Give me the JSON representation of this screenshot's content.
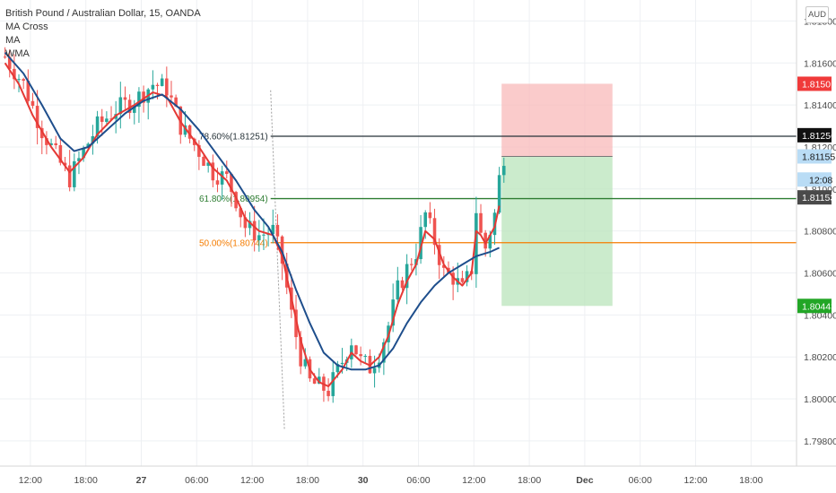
{
  "legend": {
    "title": "British Pound / Australian Dollar, 15, OANDA",
    "indicators": [
      "MA Cross",
      "MA",
      "WMA"
    ]
  },
  "currency_button": "AUD",
  "colors": {
    "grid": "#eef0f3",
    "up": "#26a69a",
    "down": "#ef5350",
    "fast_ma": "#e53935",
    "slow_ma": "#1e4e8c",
    "fib_top": "#263238",
    "fib_618": "#2e7d32",
    "fib_50": "#f57c00",
    "stop_zone": "#f8b9b9",
    "target_zone": "#b9e4bb"
  },
  "chart_data": {
    "type": "candlestick",
    "symbol": "British Pound / Australian Dollar",
    "interval": "15",
    "source": "OANDA",
    "ylim": [
      1.7968,
      1.819
    ],
    "y_ticks": [
      1.798,
      1.8,
      1.802,
      1.804,
      1.806,
      1.808,
      1.81,
      1.812,
      1.814,
      1.816,
      1.818
    ],
    "y_tick_labels": [
      "1.79800",
      "1.80000",
      "1.80200",
      "1.80400",
      "1.80600",
      "1.80800",
      "1.81000",
      "1.81200",
      "1.81400",
      "1.81600",
      "1.81800"
    ],
    "x_ticks": [
      "12:00",
      "18:00",
      "27",
      "06:00",
      "12:00",
      "18:00",
      "30",
      "06:00",
      "12:00",
      "18:00",
      "Dec",
      "06:00",
      "12:00",
      "18:00"
    ],
    "x_tick_bar_index": [
      6,
      18,
      30,
      42,
      54,
      66,
      78,
      90,
      102,
      114,
      126,
      138,
      150,
      162
    ],
    "price_path": [
      [
        0,
        1.8163
      ],
      [
        4,
        1.815
      ],
      [
        8,
        1.8128
      ],
      [
        12,
        1.8112
      ],
      [
        14,
        1.8105
      ],
      [
        17,
        1.8118
      ],
      [
        20,
        1.813
      ],
      [
        24,
        1.8138
      ],
      [
        28,
        1.8142
      ],
      [
        32,
        1.815
      ],
      [
        35,
        1.8148
      ],
      [
        38,
        1.813
      ],
      [
        42,
        1.8118
      ],
      [
        45,
        1.8108
      ],
      [
        48,
        1.8105
      ],
      [
        50,
        1.8095
      ],
      [
        52,
        1.8082
      ],
      [
        55,
        1.8078
      ],
      [
        58,
        1.808
      ],
      [
        60,
        1.8065
      ],
      [
        62,
        1.804
      ],
      [
        64,
        1.802
      ],
      [
        66,
        1.8008
      ],
      [
        68,
        1.8006
      ],
      [
        70,
        1.8004
      ],
      [
        73,
        1.8018
      ],
      [
        75,
        1.8028
      ],
      [
        77,
        1.8018
      ],
      [
        79,
        1.8015
      ],
      [
        81,
        1.8022
      ],
      [
        83,
        1.8035
      ],
      [
        85,
        1.8052
      ],
      [
        87,
        1.8062
      ],
      [
        89,
        1.807
      ],
      [
        91,
        1.8088
      ],
      [
        93,
        1.8075
      ],
      [
        95,
        1.806
      ],
      [
        97,
        1.8058
      ],
      [
        99,
        1.8052
      ],
      [
        101,
        1.8062
      ],
      [
        102,
        1.809
      ],
      [
        103,
        1.8078
      ],
      [
        104,
        1.8072
      ],
      [
        106,
        1.8088
      ],
      [
        107,
        1.8105
      ],
      [
        108,
        1.8116
      ]
    ],
    "moving_averages": [
      {
        "name": "MA",
        "color": "#e53935",
        "points": [
          [
            0,
            1.816
          ],
          [
            3,
            1.815
          ],
          [
            6,
            1.8135
          ],
          [
            10,
            1.812
          ],
          [
            14,
            1.8108
          ],
          [
            17,
            1.8115
          ],
          [
            20,
            1.8126
          ],
          [
            24,
            1.8135
          ],
          [
            28,
            1.814
          ],
          [
            32,
            1.8146
          ],
          [
            35,
            1.8144
          ],
          [
            38,
            1.8132
          ],
          [
            42,
            1.812
          ],
          [
            45,
            1.811
          ],
          [
            48,
            1.8104
          ],
          [
            50,
            1.8096
          ],
          [
            52,
            1.8086
          ],
          [
            55,
            1.808
          ],
          [
            58,
            1.8078
          ],
          [
            60,
            1.8068
          ],
          [
            62,
            1.8048
          ],
          [
            64,
            1.8028
          ],
          [
            66,
            1.8014
          ],
          [
            68,
            1.8008
          ],
          [
            70,
            1.8006
          ],
          [
            73,
            1.8014
          ],
          [
            75,
            1.8022
          ],
          [
            77,
            1.8018
          ],
          [
            79,
            1.8016
          ],
          [
            81,
            1.802
          ],
          [
            83,
            1.803
          ],
          [
            85,
            1.8045
          ],
          [
            87,
            1.8056
          ],
          [
            89,
            1.8064
          ],
          [
            91,
            1.808
          ],
          [
            93,
            1.8076
          ],
          [
            95,
            1.8064
          ],
          [
            97,
            1.8058
          ],
          [
            99,
            1.8054
          ],
          [
            101,
            1.806
          ],
          [
            102,
            1.808
          ],
          [
            103,
            1.8078
          ],
          [
            104,
            1.8074
          ],
          [
            106,
            1.8082
          ],
          [
            107,
            1.8092
          ]
        ]
      },
      {
        "name": "WMA",
        "color": "#1e4e8c",
        "points": [
          [
            0,
            1.8165
          ],
          [
            4,
            1.8155
          ],
          [
            8,
            1.814
          ],
          [
            12,
            1.8124
          ],
          [
            15,
            1.8118
          ],
          [
            18,
            1.812
          ],
          [
            22,
            1.8128
          ],
          [
            26,
            1.8136
          ],
          [
            30,
            1.8142
          ],
          [
            34,
            1.8145
          ],
          [
            38,
            1.8138
          ],
          [
            42,
            1.8128
          ],
          [
            46,
            1.8116
          ],
          [
            50,
            1.8104
          ],
          [
            54,
            1.809
          ],
          [
            57,
            1.8082
          ],
          [
            60,
            1.807
          ],
          [
            63,
            1.8052
          ],
          [
            66,
            1.8036
          ],
          [
            69,
            1.8022
          ],
          [
            72,
            1.8016
          ],
          [
            75,
            1.8014
          ],
          [
            78,
            1.8014
          ],
          [
            81,
            1.8016
          ],
          [
            84,
            1.8024
          ],
          [
            87,
            1.8036
          ],
          [
            90,
            1.8046
          ],
          [
            93,
            1.8054
          ],
          [
            96,
            1.806
          ],
          [
            99,
            1.8064
          ],
          [
            102,
            1.8068
          ],
          [
            105,
            1.807
          ],
          [
            107,
            1.8072
          ]
        ]
      }
    ],
    "fib_lines": [
      {
        "label": "78.60%(1.81251)",
        "price": 1.81251,
        "color": "#263238"
      },
      {
        "label": "61.80%(1.80954)",
        "price": 1.80954,
        "color": "#2e7d32"
      },
      {
        "label": "50.00%(1.80744)",
        "price": 1.80744,
        "color": "#f57c00"
      }
    ],
    "fib_anchor_line": {
      "from": [
        58,
        1.8147
      ],
      "to": [
        61,
        1.7985
      ]
    },
    "position": {
      "entry": 1.81155,
      "stop": 1.81501,
      "target": 1.80443,
      "start_bar": 108,
      "end_bar": 132
    },
    "price_badges": [
      {
        "label": "1.81501",
        "price": 1.81501,
        "bg": "#f03a3a",
        "fg": "#ffffff"
      },
      {
        "label": "1.81256",
        "price": 1.81256,
        "bg": "#111111",
        "fg": "#ffffff"
      },
      {
        "label": "1.81155",
        "price": 1.81155,
        "bg": "#b9dcf5",
        "fg": "#1a1a1a"
      },
      {
        "label": "12:08",
        "price": 1.81045,
        "bg": "#b9dcf5",
        "fg": "#1a1a1a"
      },
      {
        "label": "1.81153",
        "price": 1.8096,
        "bg": "#4a4a4a",
        "fg": "#ffffff"
      },
      {
        "label": "1.80443",
        "price": 1.80443,
        "bg": "#22a626",
        "fg": "#ffffff"
      }
    ]
  }
}
